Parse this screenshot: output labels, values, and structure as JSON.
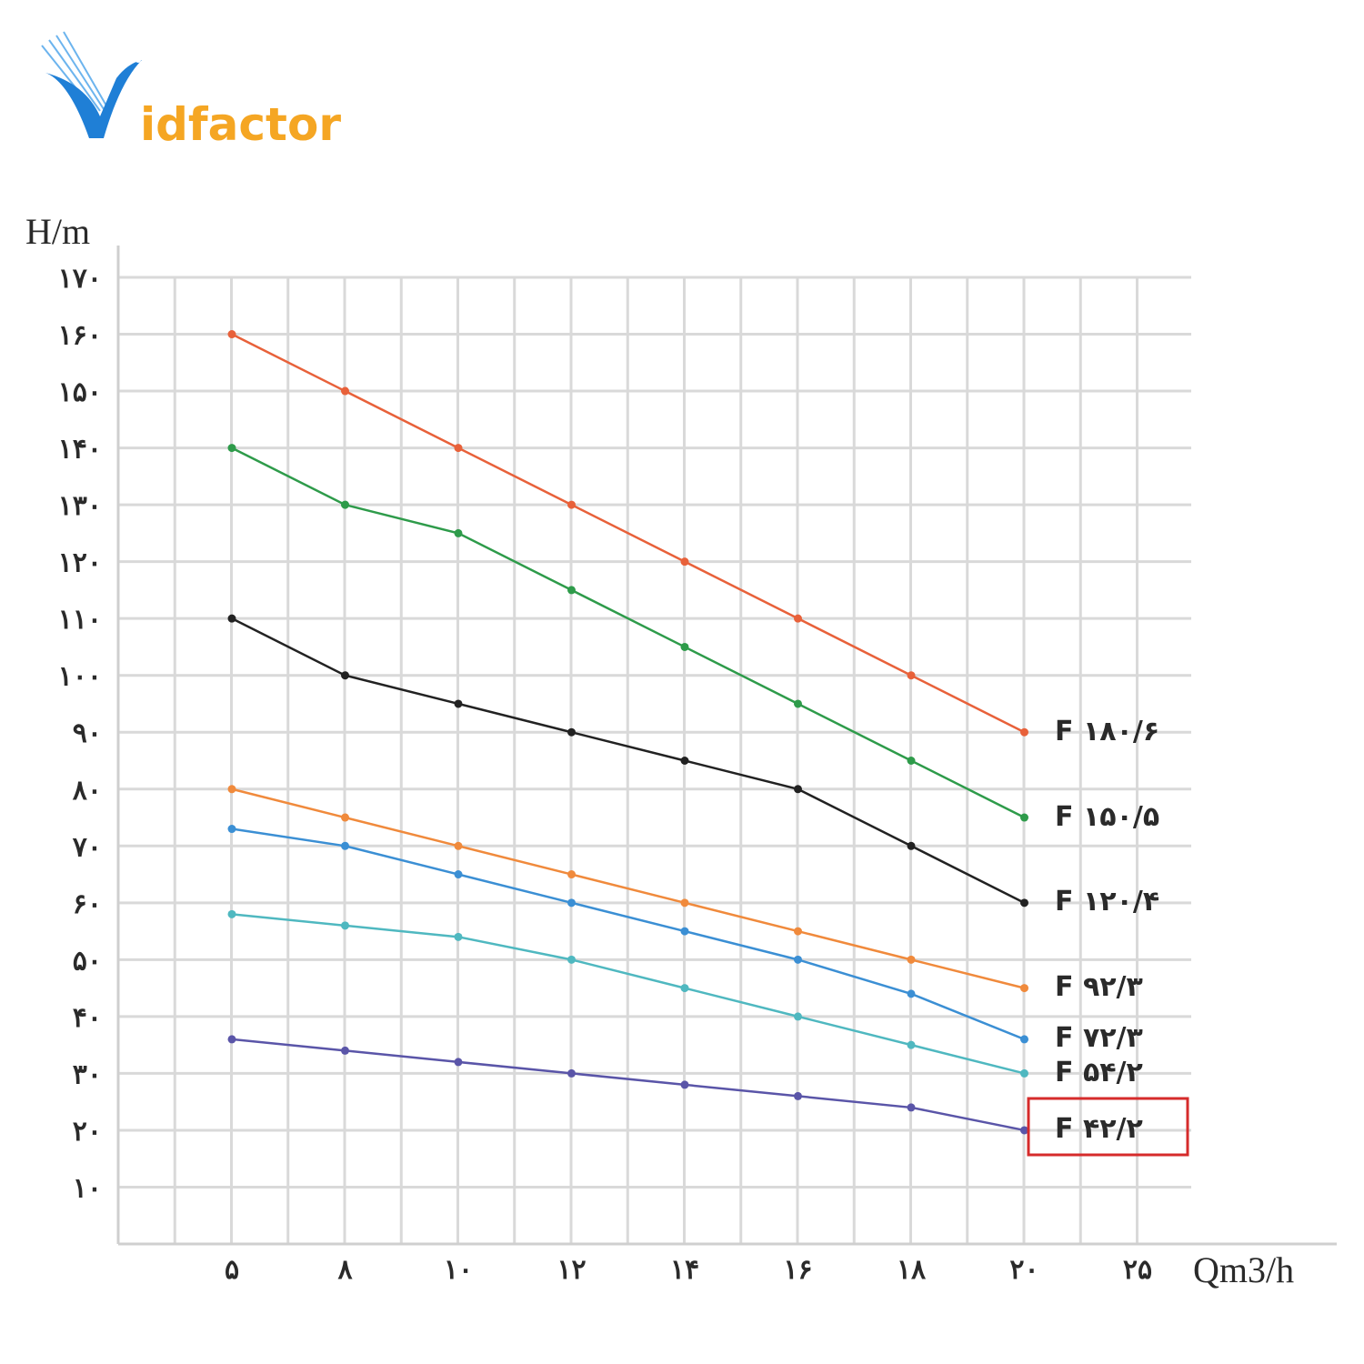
{
  "logo": {
    "text_v": "V",
    "text_rest": "idfactor",
    "blue": "#1f7fd6",
    "orange": "#f5a623"
  },
  "chart_data": {
    "type": "line",
    "xlabel": "Qm3/h",
    "ylabel": "H/m",
    "x_categories": [
      "۵",
      "۸",
      "۱۰",
      "۱۲",
      "۱۴",
      "۱۶",
      "۱۸",
      "۲۰",
      "۲۵"
    ],
    "x_values": [
      5,
      8,
      10,
      12,
      14,
      16,
      18,
      20
    ],
    "y_ticks": [
      "۱۰",
      "۲۰",
      "۳۰",
      "۴۰",
      "۵۰",
      "۶۰",
      "۷۰",
      "۸۰",
      "۹۰",
      "۱۰۰",
      "۱۱۰",
      "۱۲۰",
      "۱۳۰",
      "۱۴۰",
      "۱۵۰",
      "۱۶۰",
      "۱۷۰"
    ],
    "ylim": [
      0,
      170
    ],
    "grid": true,
    "series": [
      {
        "name": "F ۱۸۰/۶",
        "color": "#e8613a",
        "values": [
          160,
          150,
          140,
          130,
          120,
          110,
          100,
          90
        ]
      },
      {
        "name": "F ۱۵۰/۵",
        "color": "#2e9b4a",
        "values": [
          140,
          130,
          125,
          115,
          105,
          95,
          85,
          75
        ]
      },
      {
        "name": "F ۱۲۰/۴",
        "color": "#222222",
        "values": [
          110,
          100,
          95,
          90,
          85,
          80,
          70,
          60
        ]
      },
      {
        "name": "F ۹۲/۳",
        "color": "#f08a3c",
        "values": [
          80,
          75,
          70,
          65,
          60,
          55,
          50,
          45
        ]
      },
      {
        "name": "F ۷۲/۳",
        "color": "#3b8fd4",
        "values": [
          73,
          70,
          65,
          60,
          55,
          50,
          44,
          36
        ]
      },
      {
        "name": "F ۵۴/۲",
        "color": "#4fb8c0",
        "values": [
          58,
          56,
          54,
          50,
          45,
          40,
          35,
          30
        ]
      },
      {
        "name": "F ۴۲/۲",
        "color": "#5a55a8",
        "values": [
          36,
          34,
          32,
          30,
          28,
          26,
          24,
          20
        ]
      }
    ],
    "highlight": {
      "series": "F ۴۲/۲",
      "color": "#d62b2b"
    }
  }
}
